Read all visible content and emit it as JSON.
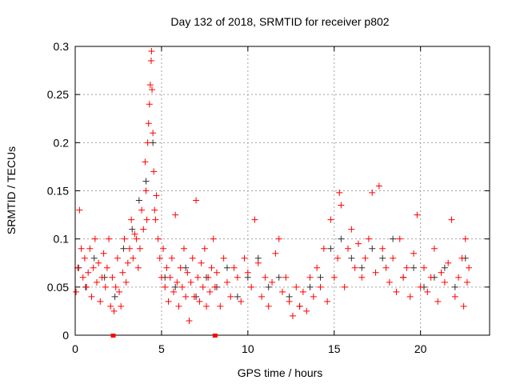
{
  "chart_data": {
    "type": "scatter",
    "title": "Day 132 of 2018, SRMTID for receiver p802",
    "xlabel": "GPS time / hours",
    "ylabel": "SRMTID / TECUs",
    "xlim": [
      0,
      24
    ],
    "ylim": [
      0,
      0.3
    ],
    "xticks": [
      0,
      5,
      10,
      15,
      20
    ],
    "xtick_labels": [
      "0",
      "5",
      "10",
      "15",
      "20"
    ],
    "yticks": [
      0,
      0.05,
      0.1,
      0.15,
      0.2,
      0.25,
      0.3
    ],
    "ytick_labels": [
      "0",
      "0.05",
      "0.1",
      "0.15",
      "0.2",
      "0.25",
      "0.3"
    ],
    "grid": true,
    "colors": {
      "series_red": "#ff0000",
      "series_black": "#303030",
      "grid": "#a0a0a0"
    },
    "markers_on_axis": [
      2.2,
      8.1
    ],
    "series": [
      {
        "name": "black",
        "color": "#303030",
        "points": [
          [
            0.2,
            0.07
          ],
          [
            0.6,
            0.05
          ],
          [
            1.1,
            0.08
          ],
          [
            1.7,
            0.06
          ],
          [
            2.3,
            0.04
          ],
          [
            2.8,
            0.09
          ],
          [
            3.3,
            0.11
          ],
          [
            3.7,
            0.14
          ],
          [
            4.1,
            0.16
          ],
          [
            4.5,
            0.2
          ],
          [
            5.2,
            0.06
          ],
          [
            5.8,
            0.05
          ],
          [
            6.4,
            0.07
          ],
          [
            7.0,
            0.04
          ],
          [
            7.6,
            0.06
          ],
          [
            8.2,
            0.05
          ],
          [
            8.8,
            0.07
          ],
          [
            9.4,
            0.04
          ],
          [
            10.0,
            0.06
          ],
          [
            10.6,
            0.08
          ],
          [
            11.2,
            0.05
          ],
          [
            11.8,
            0.06
          ],
          [
            12.4,
            0.04
          ],
          [
            13.0,
            0.03
          ],
          [
            13.6,
            0.05
          ],
          [
            14.2,
            0.06
          ],
          [
            14.8,
            0.09
          ],
          [
            15.4,
            0.1
          ],
          [
            16.0,
            0.08
          ],
          [
            16.6,
            0.07
          ],
          [
            17.2,
            0.09
          ],
          [
            17.8,
            0.08
          ],
          [
            18.4,
            0.1
          ],
          [
            19.0,
            0.06
          ],
          [
            19.6,
            0.07
          ],
          [
            20.2,
            0.05
          ],
          [
            20.8,
            0.06
          ],
          [
            21.4,
            0.07
          ],
          [
            22.0,
            0.05
          ],
          [
            22.6,
            0.08
          ]
        ]
      },
      {
        "name": "red",
        "color": "#ff0000",
        "points": [
          [
            0.05,
            0.045
          ],
          [
            0.15,
            0.07
          ],
          [
            0.25,
            0.13
          ],
          [
            0.35,
            0.09
          ],
          [
            0.45,
            0.06
          ],
          [
            0.55,
            0.08
          ],
          [
            0.65,
            0.05
          ],
          [
            0.75,
            0.065
          ],
          [
            0.85,
            0.09
          ],
          [
            0.95,
            0.04
          ],
          [
            1.05,
            0.07
          ],
          [
            1.15,
            0.1
          ],
          [
            1.25,
            0.055
          ],
          [
            1.35,
            0.075
          ],
          [
            1.45,
            0.035
          ],
          [
            1.55,
            0.06
          ],
          [
            1.65,
            0.085
          ],
          [
            1.75,
            0.05
          ],
          [
            1.85,
            0.07
          ],
          [
            1.95,
            0.1
          ],
          [
            2.05,
            0.03
          ],
          [
            2.15,
            0.06
          ],
          [
            2.25,
            0.025
          ],
          [
            2.35,
            0.05
          ],
          [
            2.45,
            0.08
          ],
          [
            2.55,
            0.045
          ],
          [
            2.65,
            0.03
          ],
          [
            2.75,
            0.065
          ],
          [
            2.85,
            0.1
          ],
          [
            2.95,
            0.055
          ],
          [
            3.05,
            0.075
          ],
          [
            3.15,
            0.09
          ],
          [
            3.25,
            0.12
          ],
          [
            3.35,
            0.08
          ],
          [
            3.45,
            0.105
          ],
          [
            3.55,
            0.1
          ],
          [
            3.65,
            0.07
          ],
          [
            3.75,
            0.09
          ],
          [
            3.85,
            0.13
          ],
          [
            3.95,
            0.11
          ],
          [
            4.05,
            0.18
          ],
          [
            4.1,
            0.15
          ],
          [
            4.15,
            0.12
          ],
          [
            4.2,
            0.2
          ],
          [
            4.25,
            0.22
          ],
          [
            4.3,
            0.24
          ],
          [
            4.35,
            0.26
          ],
          [
            4.4,
            0.285
          ],
          [
            4.42,
            0.295
          ],
          [
            4.45,
            0.255
          ],
          [
            4.5,
            0.21
          ],
          [
            4.55,
            0.17
          ],
          [
            4.6,
            0.13
          ],
          [
            4.65,
            0.12
          ],
          [
            4.7,
            0.145
          ],
          [
            4.8,
            0.1
          ],
          [
            4.9,
            0.08
          ],
          [
            5.0,
            0.06
          ],
          [
            5.1,
            0.09
          ],
          [
            5.2,
            0.05
          ],
          [
            5.3,
            0.07
          ],
          [
            5.4,
            0.035
          ],
          [
            5.5,
            0.06
          ],
          [
            5.6,
            0.08
          ],
          [
            5.7,
            0.045
          ],
          [
            5.8,
            0.125
          ],
          [
            5.9,
            0.055
          ],
          [
            6.0,
            0.03
          ],
          [
            6.1,
            0.07
          ],
          [
            6.2,
            0.05
          ],
          [
            6.3,
            0.09
          ],
          [
            6.4,
            0.04
          ],
          [
            6.5,
            0.065
          ],
          [
            6.6,
            0.015
          ],
          [
            6.7,
            0.055
          ],
          [
            6.8,
            0.08
          ],
          [
            6.9,
            0.04
          ],
          [
            7.0,
            0.14
          ],
          [
            7.1,
            0.06
          ],
          [
            7.2,
            0.035
          ],
          [
            7.3,
            0.075
          ],
          [
            7.4,
            0.05
          ],
          [
            7.5,
            0.09
          ],
          [
            7.6,
            0.03
          ],
          [
            7.7,
            0.06
          ],
          [
            7.8,
            0.045
          ],
          [
            7.9,
            0.07
          ],
          [
            8.0,
            0.1
          ],
          [
            8.1,
            0.05
          ],
          [
            8.2,
            0.065
          ],
          [
            8.4,
            0.03
          ],
          [
            8.6,
            0.08
          ],
          [
            8.8,
            0.055
          ],
          [
            9.0,
            0.04
          ],
          [
            9.2,
            0.07
          ],
          [
            9.4,
            0.06
          ],
          [
            9.6,
            0.035
          ],
          [
            9.8,
            0.08
          ],
          [
            10.0,
            0.065
          ],
          [
            10.2,
            0.05
          ],
          [
            10.4,
            0.12
          ],
          [
            10.6,
            0.075
          ],
          [
            10.8,
            0.04
          ],
          [
            11.0,
            0.06
          ],
          [
            11.2,
            0.03
          ],
          [
            11.4,
            0.055
          ],
          [
            11.6,
            0.085
          ],
          [
            11.8,
            0.1
          ],
          [
            12.0,
            0.045
          ],
          [
            12.2,
            0.06
          ],
          [
            12.4,
            0.035
          ],
          [
            12.6,
            0.02
          ],
          [
            12.8,
            0.05
          ],
          [
            13.0,
            0.03
          ],
          [
            13.2,
            0.045
          ],
          [
            13.4,
            0.025
          ],
          [
            13.6,
            0.06
          ],
          [
            13.8,
            0.04
          ],
          [
            14.0,
            0.07
          ],
          [
            14.2,
            0.05
          ],
          [
            14.4,
            0.09
          ],
          [
            14.6,
            0.035
          ],
          [
            14.8,
            0.12
          ],
          [
            15.0,
            0.06
          ],
          [
            15.2,
            0.08
          ],
          [
            15.3,
            0.148
          ],
          [
            15.4,
            0.135
          ],
          [
            15.6,
            0.05
          ],
          [
            15.8,
            0.09
          ],
          [
            16.0,
            0.11
          ],
          [
            16.2,
            0.07
          ],
          [
            16.4,
            0.095
          ],
          [
            16.6,
            0.06
          ],
          [
            16.8,
            0.08
          ],
          [
            17.0,
            0.1
          ],
          [
            17.2,
            0.148
          ],
          [
            17.4,
            0.065
          ],
          [
            17.6,
            0.155
          ],
          [
            17.8,
            0.09
          ],
          [
            18.0,
            0.07
          ],
          [
            18.2,
            0.055
          ],
          [
            18.4,
            0.08
          ],
          [
            18.6,
            0.045
          ],
          [
            18.8,
            0.1
          ],
          [
            19.0,
            0.06
          ],
          [
            19.2,
            0.07
          ],
          [
            19.4,
            0.04
          ],
          [
            19.6,
            0.085
          ],
          [
            19.8,
            0.125
          ],
          [
            20.0,
            0.05
          ],
          [
            20.2,
            0.07
          ],
          [
            20.4,
            0.045
          ],
          [
            20.6,
            0.06
          ],
          [
            20.8,
            0.09
          ],
          [
            21.0,
            0.035
          ],
          [
            21.2,
            0.065
          ],
          [
            21.4,
            0.055
          ],
          [
            21.6,
            0.075
          ],
          [
            21.8,
            0.12
          ],
          [
            22.0,
            0.04
          ],
          [
            22.2,
            0.06
          ],
          [
            22.4,
            0.08
          ],
          [
            22.5,
            0.03
          ],
          [
            22.6,
            0.1
          ],
          [
            22.7,
            0.055
          ],
          [
            22.8,
            0.07
          ]
        ]
      }
    ]
  }
}
